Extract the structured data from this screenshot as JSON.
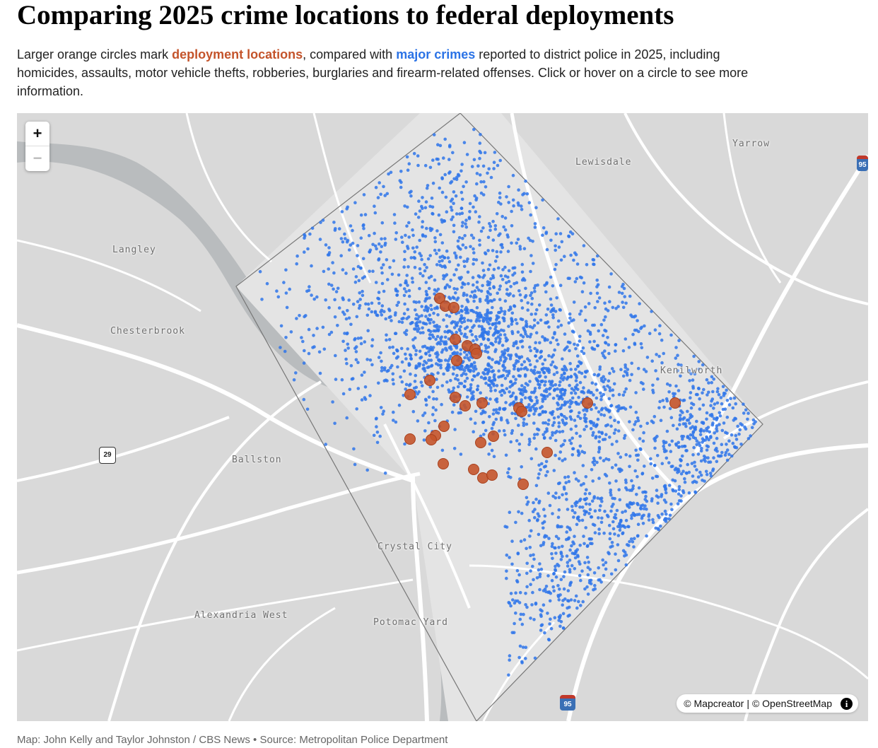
{
  "headline": "Comparing 2025 crime locations to federal deployments",
  "dek": {
    "before": "Larger orange circles mark ",
    "deployment_label": "deployment locations",
    "middle": ", compared with ",
    "crimes_label": "major crimes",
    "after": " reported to district police in 2025, including homicides, assaults, motor vehicle thefts, robberies, burglaries and firearm-related offenses. Click or hover on a circle to see more information."
  },
  "colors": {
    "deployment": "#c4542b",
    "crime": "#2f76ea",
    "land": "#d9d9d9",
    "water": "#b9bcbe",
    "road": "#ffffff"
  },
  "zoom": {
    "in_label": "+",
    "out_label": "−"
  },
  "place_labels": {
    "yarrow": "Yarrow",
    "lewisdale": "Lewisdale",
    "langley": "Langley",
    "chesterbrook": "Chesterbrook",
    "ballston": "Ballston",
    "crystal_city": "Crystal City",
    "alexandria_west": "Alexandria West",
    "potomac_yard": "Potomac Yard",
    "kenilworth": "Kenilworth"
  },
  "shields": {
    "hwy29": "29",
    "i95_east": "95",
    "i95_south": "95"
  },
  "attribution": {
    "mapcreator": "© Mapcreator",
    "separator": "|",
    "osm": "© OpenStreetMap",
    "info_glyph": "i"
  },
  "credit": "Map: John Kelly and Taylor Johnston / CBS News • Source: Metropolitan Police Department",
  "legend_icons": [
    "plus-icon",
    "minus-icon",
    "info-icon"
  ]
}
